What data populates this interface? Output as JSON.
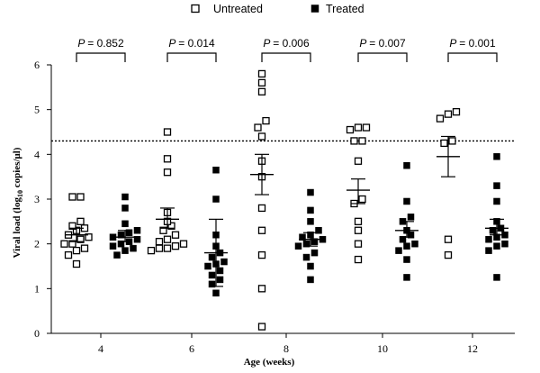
{
  "chart_data": {
    "type": "scatter",
    "title": "",
    "xlabel": "Age (weeks)",
    "ylabel_main": "Viral load (log",
    "ylabel_sub": "10",
    "ylabel_end": " copies/μl)",
    "ylim": [
      0,
      6
    ],
    "yticks": [
      "0",
      "1",
      "2",
      "3",
      "4",
      "5",
      "6"
    ],
    "categories": [
      "4",
      "6",
      "8",
      "10",
      "12"
    ],
    "threshold": 4.3,
    "legend": {
      "placement": "top-center",
      "items": [
        {
          "label": "Untreated",
          "marker": "open-square"
        },
        {
          "label": "Treated",
          "marker": "filled-square"
        }
      ]
    },
    "p_values": [
      "= 0.852",
      "= 0.014",
      "= 0.006",
      "= 0.007",
      "= 0.001"
    ],
    "p_symbol": "P",
    "series": [
      {
        "name": "Untreated",
        "marker": "open-square",
        "groups": [
          {
            "points": [
              3.05,
              3.05,
              2.5,
              2.4,
              2.35,
              2.3,
              2.2,
              2.15,
              2.1,
              2.0,
              2.0,
              1.9,
              1.85,
              1.75,
              1.55
            ],
            "mean": 2.2,
            "sem_low": 2.05,
            "sem_high": 2.35
          },
          {
            "points": [
              4.5,
              3.9,
              3.6,
              2.7,
              2.5,
              2.4,
              2.3,
              2.2,
              2.1,
              2.05,
              2.0,
              1.95,
              1.9,
              1.9,
              1.85
            ],
            "mean": 2.55,
            "sem_low": 2.35,
            "sem_high": 2.8
          },
          {
            "points": [
              5.8,
              5.6,
              5.4,
              4.75,
              4.6,
              4.4,
              3.85,
              3.5,
              2.8,
              2.3,
              1.75,
              1.0,
              0.15
            ],
            "mean": 3.55,
            "sem_low": 3.1,
            "sem_high": 4.0
          },
          {
            "points": [
              4.6,
              4.6,
              4.55,
              4.3,
              4.3,
              3.85,
              3.0,
              2.9,
              2.5,
              2.3,
              2.0,
              1.65
            ],
            "mean": 3.2,
            "sem_low": 2.9,
            "sem_high": 3.45
          },
          {
            "points": [
              4.95,
              4.9,
              4.8,
              4.3,
              4.25,
              2.1,
              1.75
            ],
            "mean": 3.95,
            "sem_low": 3.5,
            "sem_high": 4.4
          }
        ]
      },
      {
        "name": "Treated",
        "marker": "filled-square",
        "groups": [
          {
            "points": [
              3.05,
              2.8,
              2.45,
              2.3,
              2.25,
              2.2,
              2.15,
              2.1,
              2.05,
              2.0,
              1.95,
              1.9,
              1.85,
              1.75
            ],
            "mean": 2.15,
            "sem_low": 2.05,
            "sem_high": 2.3
          },
          {
            "points": [
              3.65,
              3.0,
              2.2,
              1.95,
              1.8,
              1.7,
              1.6,
              1.55,
              1.5,
              1.4,
              1.3,
              1.2,
              1.1,
              0.9
            ],
            "mean": 1.8,
            "sem_low": 1.05,
            "sem_high": 2.55
          },
          {
            "points": [
              3.15,
              2.75,
              2.5,
              2.3,
              2.2,
              2.15,
              2.1,
              2.05,
              2.0,
              1.95,
              1.8,
              1.7,
              1.5,
              1.2
            ],
            "mean": 2.1,
            "sem_low": 1.95,
            "sem_high": 2.25
          },
          {
            "points": [
              3.75,
              2.95,
              2.6,
              2.5,
              2.3,
              2.2,
              2.1,
              2.0,
              1.95,
              1.85,
              1.65,
              1.25
            ],
            "mean": 2.3,
            "sem_low": 2.15,
            "sem_high": 2.5
          },
          {
            "points": [
              3.95,
              3.3,
              2.95,
              2.5,
              2.35,
              2.3,
              2.2,
              2.15,
              2.1,
              2.0,
              1.95,
              1.85,
              1.25
            ],
            "mean": 2.35,
            "sem_low": 2.2,
            "sem_high": 2.55
          }
        ]
      }
    ]
  }
}
